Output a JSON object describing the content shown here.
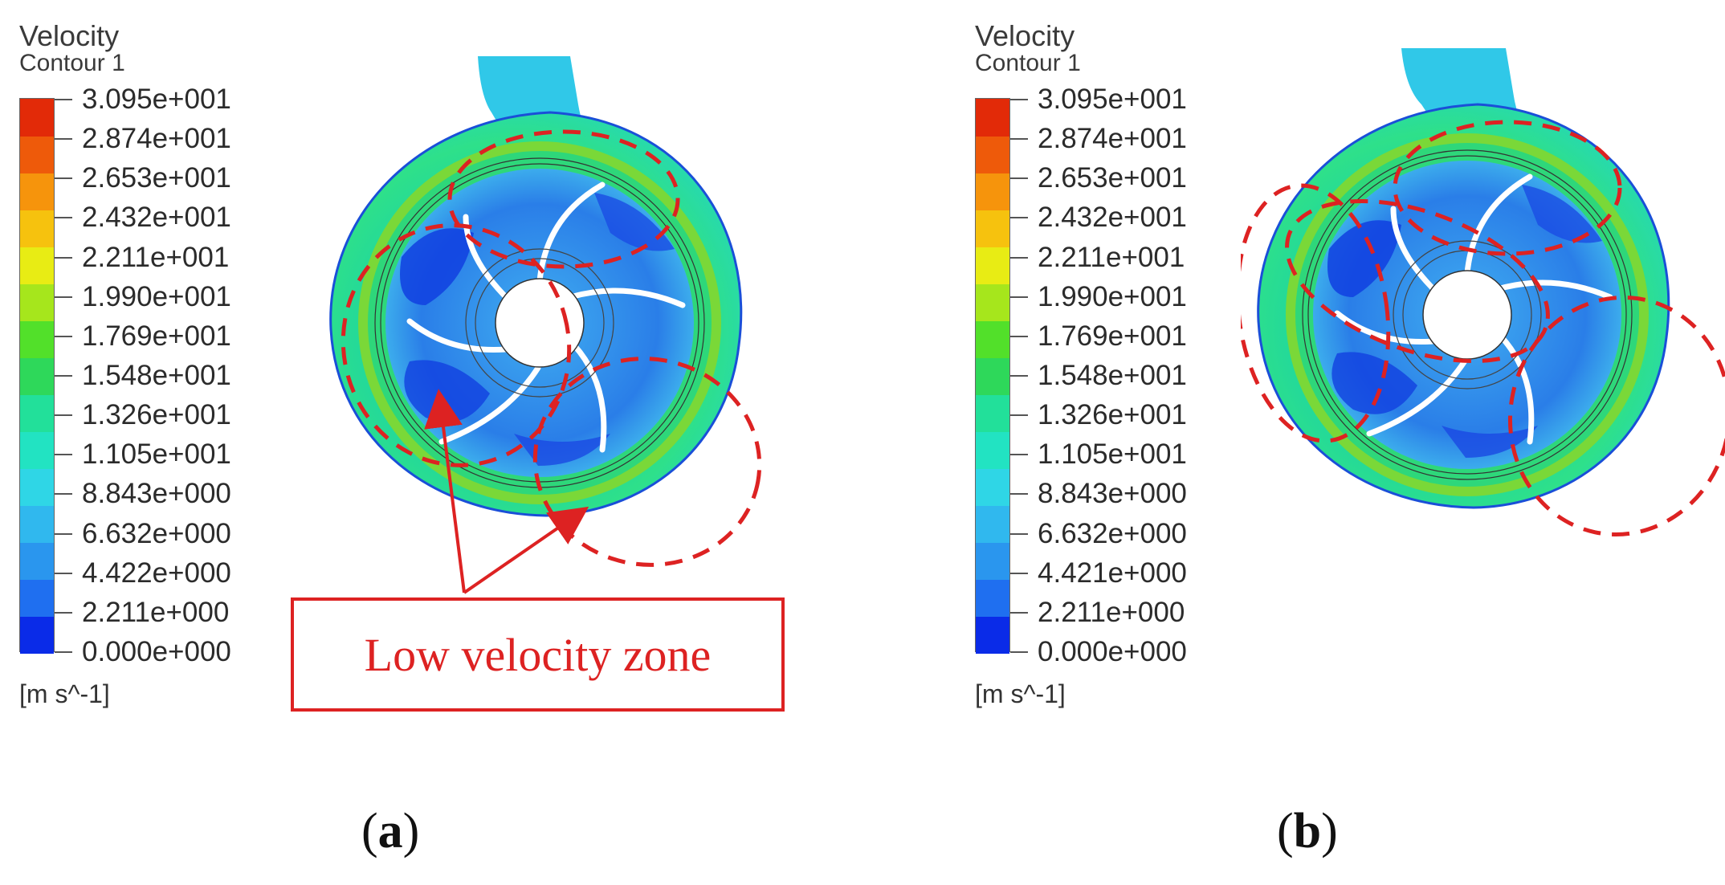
{
  "colors": {
    "accent": "#dd2222",
    "colormap": [
      "#0a2be8",
      "#1f6ff0",
      "#2a96ee",
      "#30b8ee",
      "#2fd6e6",
      "#22e3c2",
      "#22e09a",
      "#2ed85a",
      "#52e02a",
      "#a6e61c",
      "#e8ec14",
      "#f6c20e",
      "#f6940c",
      "#ee5a0a",
      "#e22a08"
    ]
  },
  "panels": [
    {
      "legend_title_line1": "Velocity",
      "legend_title_line2": "Contour 1",
      "ticks": [
        "3.095e+001",
        "2.874e+001",
        "2.653e+001",
        "2.432e+001",
        "2.211e+001",
        "1.990e+001",
        "1.769e+001",
        "1.548e+001",
        "1.326e+001",
        "1.105e+001",
        "8.843e+000",
        "6.632e+000",
        "4.422e+000",
        "2.211e+000",
        "0.000e+000"
      ],
      "units": "[m s^-1]",
      "annotation": "Low velocity zone",
      "sublabel_open": "(",
      "sublabel_letter": "a",
      "sublabel_close": ")"
    },
    {
      "legend_title_line1": "Velocity",
      "legend_title_line2": "Contour 1",
      "ticks": [
        "3.095e+001",
        "2.874e+001",
        "2.653e+001",
        "2.432e+001",
        "2.211e+001",
        "1.990e+001",
        "1.769e+001",
        "1.548e+001",
        "1.326e+001",
        "1.105e+001",
        "8.843e+000",
        "6.632e+000",
        "4.421e+000",
        "2.211e+000",
        "0.000e+000"
      ],
      "units": "[m s^-1]",
      "sublabel_open": "(",
      "sublabel_letter": "b",
      "sublabel_close": ")"
    }
  ]
}
